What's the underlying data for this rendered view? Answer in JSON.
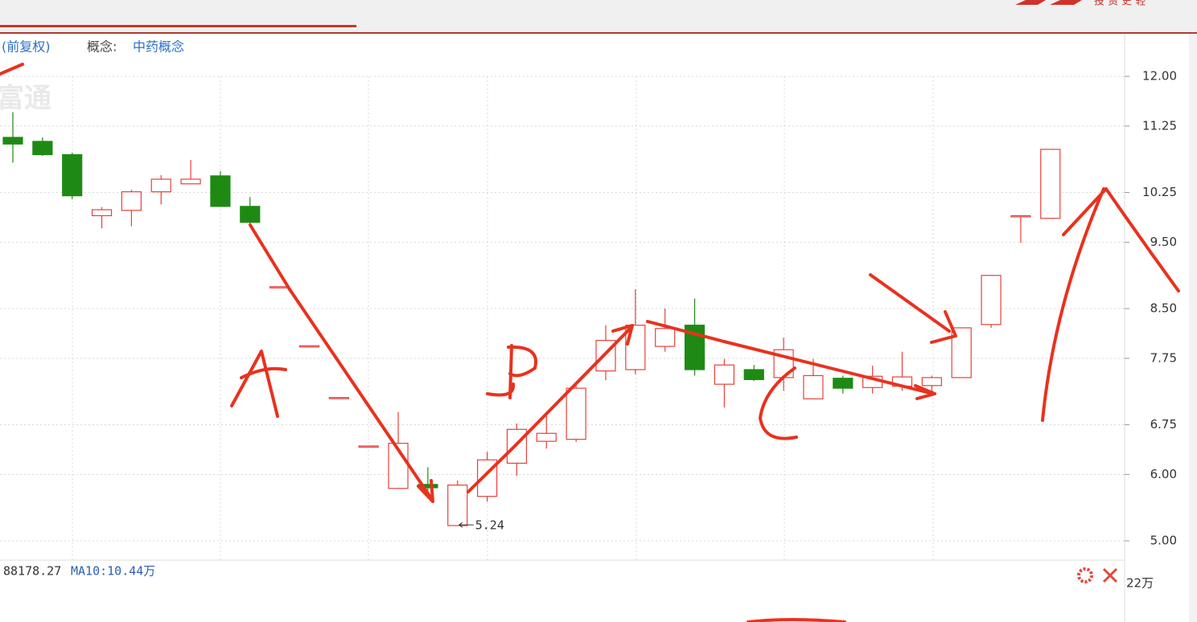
{
  "header": {
    "adjust": "(前复权)",
    "concept_label": "概念:",
    "concept": "中药概念",
    "watermark": "富通",
    "brand": "投 资 史 轻"
  },
  "volume_info": {
    "ma5": "88178.27",
    "ma10": "MA10:10.44万",
    "axis_top": "22万"
  },
  "chart_data": {
    "type": "candlestick",
    "up_color": "#e8403a",
    "down_color": "#1e8a14",
    "open": [
      11.08,
      11.02,
      10.82,
      9.9,
      9.98,
      10.26,
      10.38,
      10.5,
      10.04,
      8.83,
      7.94,
      7.16,
      6.43,
      5.79,
      5.85,
      5.23,
      5.67,
      6.17,
      6.5,
      6.53,
      7.56,
      7.58,
      7.93,
      8.25,
      7.36,
      7.58,
      7.46,
      7.14,
      7.45,
      7.31,
      7.33,
      7.34,
      7.46,
      8.26,
      9.9,
      9.86
    ],
    "high": [
      11.46,
      11.08,
      10.85,
      10.03,
      10.29,
      10.51,
      10.74,
      10.57,
      10.18,
      8.83,
      7.94,
      7.16,
      6.43,
      6.94,
      6.11,
      5.91,
      6.34,
      6.77,
      6.9,
      7.34,
      8.25,
      8.79,
      8.5,
      8.65,
      7.74,
      7.65,
      8.06,
      7.74,
      7.49,
      7.64,
      7.85,
      7.49,
      8.21,
      9.0,
      9.9,
      10.9
    ],
    "low": [
      10.7,
      10.8,
      10.15,
      9.71,
      9.74,
      10.07,
      10.38,
      10.04,
      9.77,
      8.83,
      7.94,
      7.16,
      6.43,
      5.79,
      5.76,
      5.24,
      5.59,
      5.98,
      6.39,
      6.49,
      7.42,
      7.51,
      7.85,
      7.49,
      7.01,
      7.41,
      7.26,
      7.14,
      7.22,
      7.22,
      7.26,
      7.19,
      7.46,
      8.21,
      9.49,
      9.86
    ],
    "close": [
      10.98,
      10.82,
      10.2,
      9.99,
      10.26,
      10.45,
      10.45,
      10.04,
      9.8,
      8.83,
      7.94,
      7.16,
      6.43,
      6.47,
      5.8,
      5.84,
      6.22,
      6.68,
      6.62,
      7.3,
      8.02,
      8.25,
      8.2,
      7.58,
      7.65,
      7.43,
      7.88,
      7.49,
      7.3,
      7.48,
      7.47,
      7.46,
      8.21,
      9.0,
      9.9,
      10.9
    ],
    "ylim": [
      5.0,
      12.0
    ],
    "yticks": [
      {
        "value": 5.0,
        "label": "5.00"
      },
      {
        "value": 6.0,
        "label": "6.00"
      },
      {
        "value": 6.75,
        "label": "6.75"
      },
      {
        "value": 7.75,
        "label": "7.75"
      },
      {
        "value": 8.5,
        "label": "8.50"
      },
      {
        "value": 9.5,
        "label": "9.50"
      },
      {
        "value": 10.25,
        "label": "10.25"
      },
      {
        "value": 11.25,
        "label": "11.25"
      },
      {
        "value": 12.0,
        "label": "12.00"
      }
    ],
    "grid": true
  }
}
